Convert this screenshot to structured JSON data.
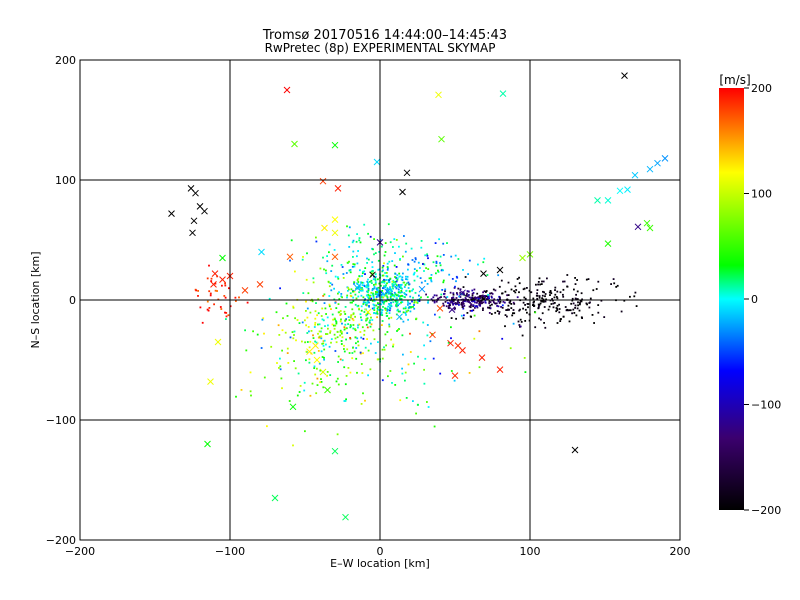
{
  "chart_data": {
    "type": "scatter",
    "title": "Tromsø 20170516 14:44:00–14:45:43",
    "subtitle": "RwPretec (8p) EXPERIMENTAL SKYMAP",
    "xlabel": "E–W location [km]",
    "ylabel": "N–S location [km]",
    "xlim": [
      -200,
      200
    ],
    "ylim": [
      -200,
      200
    ],
    "xticks": [
      -200,
      -100,
      0,
      100,
      200
    ],
    "yticks": [
      -200,
      -100,
      0,
      100,
      200
    ],
    "grid": true,
    "colorbar": {
      "label": "[m/s]",
      "range": [
        -200,
        200
      ],
      "ticks": [
        200,
        100,
        0,
        -100,
        -200
      ],
      "colormap": [
        "#000000",
        "#3b006e",
        "#0000ff",
        "#00ffff",
        "#00ff00",
        "#ffff00",
        "#ff0000"
      ]
    },
    "crosses": [
      [
        163,
        187,
        -200
      ],
      [
        -126,
        93,
        -200
      ],
      [
        -123,
        89,
        -200
      ],
      [
        -120,
        78,
        -200
      ],
      [
        -117,
        74,
        -200
      ],
      [
        -124,
        66,
        -200
      ],
      [
        -125,
        56,
        -200
      ],
      [
        -139,
        72,
        -200
      ],
      [
        18,
        106,
        -200
      ],
      [
        15,
        90,
        -200
      ],
      [
        80,
        25,
        -200
      ],
      [
        130,
        -125,
        -200
      ],
      [
        69,
        22,
        -200
      ],
      [
        -5,
        21,
        -200
      ],
      [
        0,
        48,
        -120
      ],
      [
        172,
        61,
        -120
      ],
      [
        55,
        6,
        -120
      ],
      [
        48,
        -8,
        -120
      ],
      [
        -62,
        175,
        200
      ],
      [
        -38,
        99,
        180
      ],
      [
        -28,
        93,
        190
      ],
      [
        -110,
        22,
        190
      ],
      [
        -105,
        17,
        190
      ],
      [
        -100,
        20,
        190
      ],
      [
        -111,
        13,
        190
      ],
      [
        -80,
        13,
        180
      ],
      [
        -90,
        8,
        180
      ],
      [
        -60,
        36,
        170
      ],
      [
        -30,
        36,
        170
      ],
      [
        35,
        -29,
        180
      ],
      [
        47,
        -36,
        190
      ],
      [
        55,
        -42,
        190
      ],
      [
        52,
        -38,
        185
      ],
      [
        68,
        -48,
        190
      ],
      [
        50,
        -63,
        185
      ],
      [
        80,
        -58,
        190
      ],
      [
        40,
        -7,
        175
      ],
      [
        -108,
        -35,
        110
      ],
      [
        -37,
        60,
        120
      ],
      [
        -30,
        67,
        115
      ],
      [
        -30,
        56,
        110
      ],
      [
        -43,
        -38,
        120
      ],
      [
        39,
        171,
        110
      ],
      [
        -47,
        -43,
        120
      ],
      [
        -42,
        -50,
        115
      ],
      [
        -8,
        -10,
        110
      ],
      [
        -113,
        -68,
        110
      ],
      [
        -38,
        -60,
        100
      ],
      [
        -57,
        130,
        60
      ],
      [
        -35,
        -75,
        50
      ],
      [
        41,
        134,
        60
      ],
      [
        95,
        35,
        80
      ],
      [
        100,
        38,
        70
      ],
      [
        152,
        47,
        40
      ],
      [
        178,
        64,
        50
      ],
      [
        180,
        60,
        50
      ],
      [
        -58,
        -89,
        30
      ],
      [
        -115,
        -120,
        30
      ],
      [
        -30,
        -126,
        20
      ],
      [
        -30,
        129,
        30
      ],
      [
        -70,
        -165,
        20
      ],
      [
        -23,
        -181,
        20
      ],
      [
        82,
        172,
        10
      ],
      [
        -105,
        35,
        30
      ],
      [
        145,
        83,
        10
      ],
      [
        152,
        83,
        5
      ],
      [
        160,
        91,
        0
      ],
      [
        165,
        92,
        -5
      ],
      [
        170,
        104,
        -15
      ],
      [
        180,
        109,
        -20
      ],
      [
        185,
        114,
        -25
      ],
      [
        190,
        118,
        -30
      ],
      [
        -2,
        115,
        -10
      ],
      [
        13,
        -14,
        -20
      ],
      [
        28,
        9,
        -30
      ],
      [
        -14,
        12,
        -15
      ],
      [
        -79,
        40,
        -10
      ],
      [
        -15,
        10,
        -20
      ],
      [
        5,
        7,
        -30
      ]
    ]
  }
}
